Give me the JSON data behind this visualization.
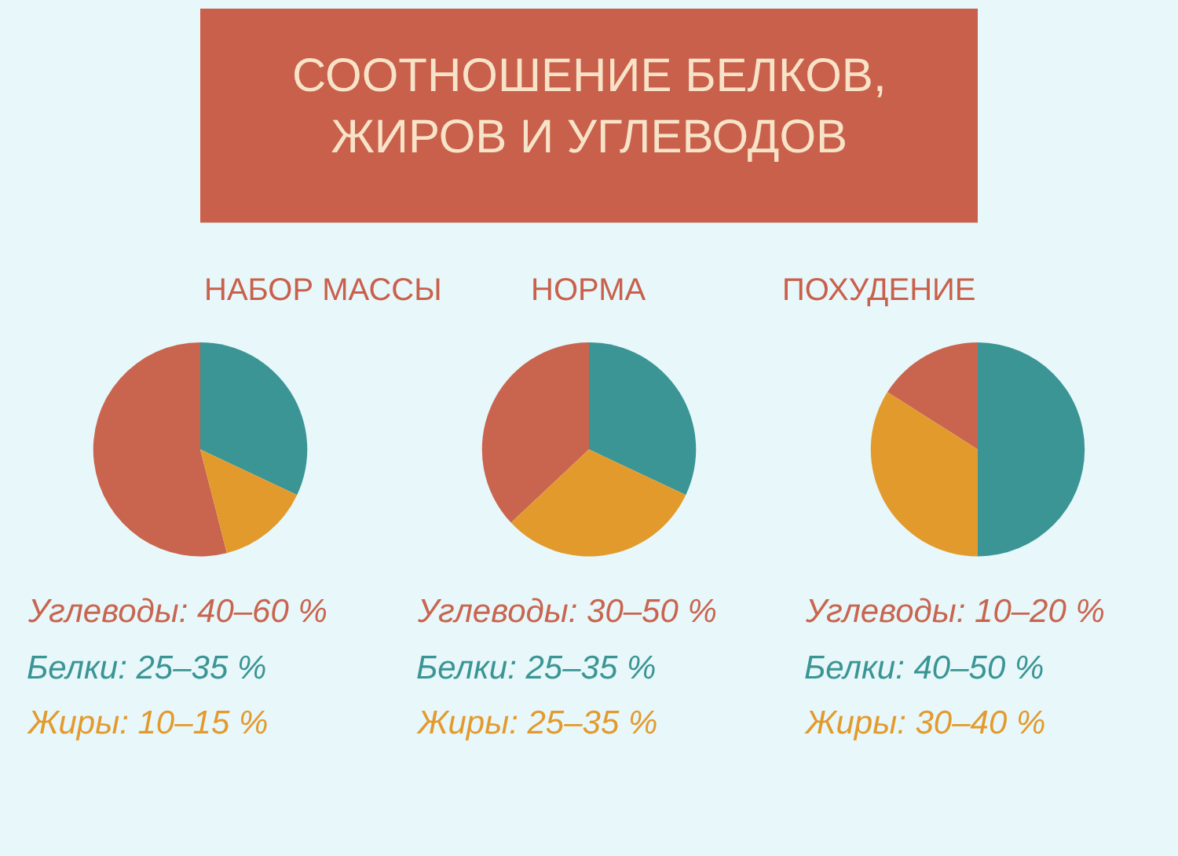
{
  "chart_data": [
    {
      "type": "other",
      "title": "СООТНОШЕНИЕ БЕЛКОВ,\nЖИРОВ И УГЛЕВОДОВ"
    },
    {
      "type": "pie",
      "title": "НАБОР МАССЫ",
      "categories": [
        null,
        null,
        null
      ],
      "values": [
        54,
        32,
        14
      ],
      "colors": [
        "#c9654f",
        "#3a9594",
        "#e39a2d"
      ],
      "annotations": [
        "Углеводы: 40–60 %",
        "Белки: 25–35 %",
        "Жиры: 10–15 %"
      ]
    },
    {
      "type": "pie",
      "title": "НОРМА",
      "categories": [
        null,
        null,
        null
      ],
      "values": [
        37,
        32,
        31
      ],
      "colors": [
        "#c9654f",
        "#3a9594",
        "#e39a2d"
      ],
      "annotations": [
        "Углеводы: 30–50 %",
        "Белки: 25–35 %",
        "Жиры: 25–35 %"
      ]
    },
    {
      "type": "pie",
      "title": "ПОХУДЕНИЕ",
      "categories": [
        null,
        null,
        null
      ],
      "values": [
        16,
        50,
        34
      ],
      "colors": [
        "#c9654f",
        "#3a9594",
        "#e39a2d"
      ],
      "annotations": [
        "Углеводы: 10–20 %",
        "Белки: 40–50 %",
        "Жиры: 30–40 %"
      ]
    }
  ]
}
